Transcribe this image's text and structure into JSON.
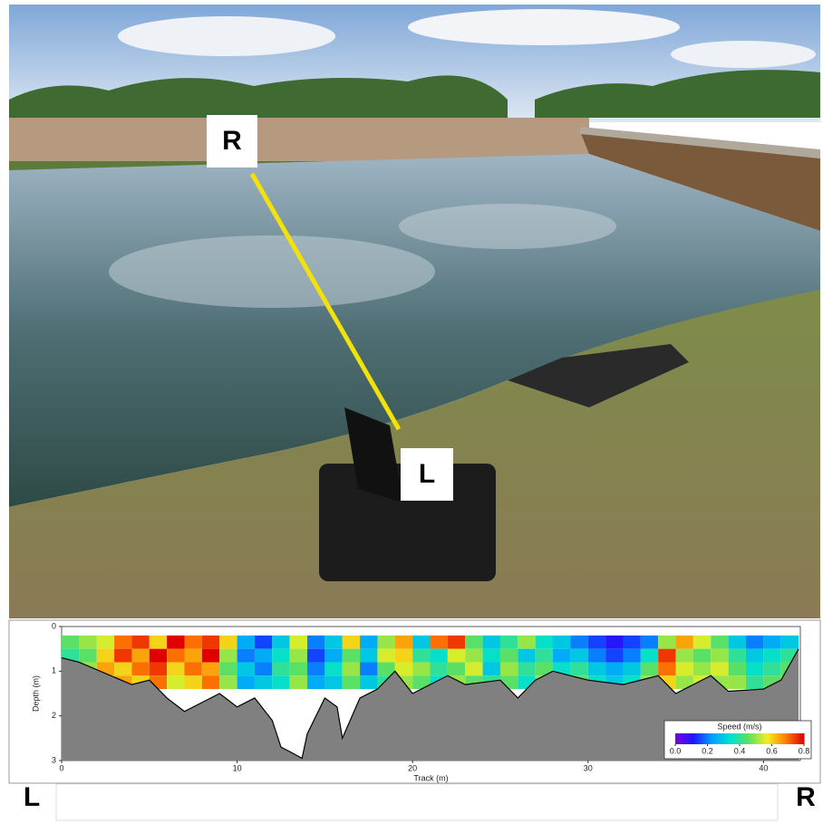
{
  "photo": {
    "label_right": "R",
    "label_left": "L"
  },
  "chart_data": {
    "type": "heatmap",
    "xlabel": "Track (m)",
    "ylabel": "Depth (m)",
    "xlim": [
      0,
      42.1
    ],
    "xticks": [
      0,
      10,
      20,
      30,
      40
    ],
    "ylim": [
      0,
      3
    ],
    "yticks": [
      0,
      1,
      2,
      3
    ],
    "y_inverted": true,
    "x": [
      0.5,
      1.5,
      2.5,
      3.5,
      4.5,
      5.5,
      6.5,
      7.5,
      8.5,
      9.5,
      10.5,
      11.5,
      12.5,
      13.5,
      14.5,
      15.5,
      16.5,
      17.5,
      18.5,
      19.5,
      20.5,
      21.5,
      22.5,
      23.5,
      24.5,
      25.5,
      26.5,
      27.5,
      28.5,
      29.5,
      30.5,
      31.5,
      32.5,
      33.5,
      34.5,
      35.5,
      36.5,
      37.5,
      38.5,
      39.5,
      40.5,
      41.5
    ],
    "depth": [
      0.35,
      0.65,
      0.95,
      1.25
    ],
    "values": [
      [
        0.45,
        0.5,
        0.55,
        0.7,
        0.75,
        0.6,
        0.8,
        0.7,
        0.75,
        0.6,
        0.25,
        0.15,
        0.3,
        0.55,
        0.2,
        0.3,
        0.6,
        0.25,
        0.5,
        0.65,
        0.3,
        0.7,
        0.75,
        0.45,
        0.3,
        0.4,
        0.5,
        0.35,
        0.3,
        0.2,
        0.15,
        0.1,
        0.15,
        0.2,
        0.5,
        0.65,
        0.55,
        0.45,
        0.3,
        0.2,
        0.25,
        0.3
      ],
      [
        0.4,
        0.45,
        0.6,
        0.75,
        0.65,
        0.8,
        0.7,
        0.65,
        0.8,
        0.5,
        0.2,
        0.25,
        0.35,
        0.5,
        0.15,
        0.25,
        0.45,
        0.3,
        0.55,
        0.6,
        0.4,
        0.35,
        0.55,
        0.5,
        0.35,
        0.45,
        0.3,
        0.4,
        0.25,
        0.3,
        0.2,
        0.15,
        0.2,
        0.35,
        0.75,
        0.5,
        0.45,
        0.5,
        0.4,
        0.3,
        0.35,
        0.4
      ],
      [
        0.45,
        0.5,
        0.65,
        0.6,
        0.7,
        0.75,
        0.6,
        0.7,
        0.65,
        0.45,
        0.3,
        0.2,
        0.4,
        0.45,
        0.2,
        0.35,
        0.5,
        0.2,
        0.45,
        0.55,
        0.5,
        0.4,
        0.45,
        0.55,
        0.3,
        0.5,
        0.4,
        0.45,
        0.35,
        0.4,
        0.3,
        0.25,
        0.3,
        0.45,
        0.7,
        0.55,
        0.5,
        0.55,
        0.45,
        0.35,
        0.4,
        0.45
      ],
      [
        0.4,
        0.5,
        0.55,
        0.65,
        0.6,
        0.7,
        0.55,
        0.6,
        0.7,
        0.5,
        0.25,
        0.3,
        0.35,
        0.5,
        0.25,
        0.3,
        0.45,
        0.3,
        0.4,
        0.5,
        0.45,
        0.35,
        0.5,
        0.45,
        0.4,
        0.45,
        0.35,
        0.5,
        0.4,
        0.45,
        0.35,
        0.3,
        0.35,
        0.5,
        0.6,
        0.5,
        0.55,
        0.5,
        0.5,
        0.4,
        0.45,
        0.5
      ]
    ],
    "bed": {
      "color": "#808080",
      "x": [
        0,
        1,
        4,
        5,
        6,
        7,
        8,
        9,
        10,
        11,
        12,
        12.5,
        13,
        13.7,
        14,
        15,
        15.7,
        16,
        17,
        18,
        19,
        20,
        21,
        22,
        23,
        25,
        26,
        27,
        28,
        30,
        32,
        34,
        35,
        36,
        37,
        38,
        40,
        41,
        42
      ],
      "depth": [
        0.7,
        0.8,
        1.3,
        1.2,
        1.6,
        1.9,
        1.7,
        1.5,
        1.8,
        1.6,
        2.1,
        2.7,
        2.8,
        2.95,
        2.4,
        1.6,
        1.8,
        2.5,
        1.6,
        1.4,
        1.0,
        1.5,
        1.3,
        1.1,
        1.3,
        1.2,
        1.6,
        1.2,
        1.0,
        1.2,
        1.3,
        1.1,
        1.5,
        1.3,
        1.1,
        1.45,
        1.4,
        1.2,
        0.5
      ]
    },
    "colorbar": {
      "label": "Speed (m/s)",
      "clim": [
        0,
        0.8
      ],
      "ticks": [
        {
          "value": 0,
          "label": "0.0"
        },
        0.2,
        0.4,
        0.6,
        0.8
      ],
      "colormap": [
        "#7b00d4",
        "#1a1aff",
        "#00a0ff",
        "#00e0d0",
        "#60e060",
        "#f0f020",
        "#ff8000",
        "#e00000"
      ]
    }
  },
  "bank_labels": {
    "left": "L",
    "right": "R"
  }
}
